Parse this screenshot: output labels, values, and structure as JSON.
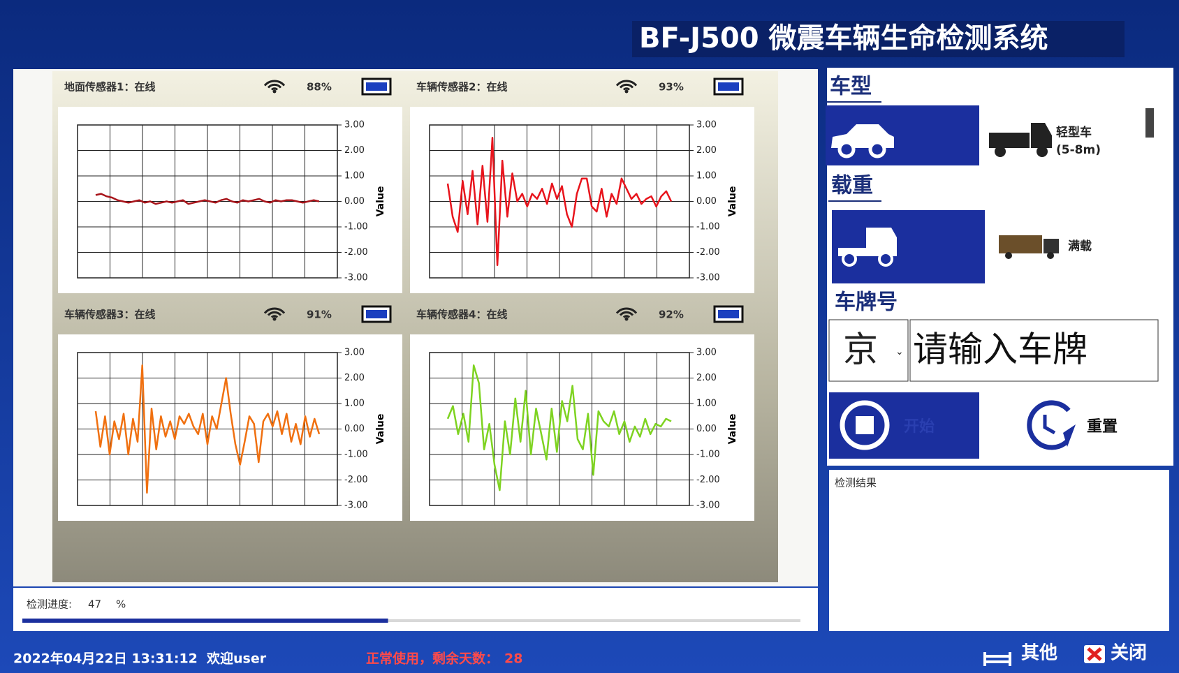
{
  "header": {
    "title": "BF-J500 微震车辆生命检测系统"
  },
  "sensors": [
    {
      "label": "地面传感器1：在线",
      "signal": "88%",
      "chart": {
        "type": "line",
        "ylabel": "Value",
        "ylim": [
          -3,
          3
        ],
        "yticks": [
          {
            "value": 3,
            "label": "3.00"
          },
          {
            "value": 2,
            "label": "2.00"
          },
          {
            "value": 1,
            "label": "1.00"
          },
          {
            "value": 0,
            "label": "0.00"
          },
          {
            "value": -1,
            "label": "-1.00"
          },
          {
            "value": -2,
            "label": "-2.00"
          },
          {
            "value": -3,
            "label": "-3.00"
          }
        ],
        "series": [
          {
            "color": "#a8141a",
            "values": [
              0.25,
              0.3,
              0.2,
              0.15,
              0.05,
              0,
              -0.05,
              0,
              0.05,
              -0.05,
              0,
              -0.1,
              -0.05,
              0,
              -0.05,
              0,
              0.05,
              -0.1,
              -0.05,
              0,
              0.05,
              0,
              -0.05,
              0.05,
              0.1,
              0,
              -0.05,
              0.05,
              0,
              0.05,
              0.1,
              0,
              -0.05,
              0.05,
              0,
              0.05,
              0.05,
              0,
              -0.05,
              0,
              0.05,
              0
            ]
          }
        ]
      }
    },
    {
      "label": "车辆传感器2：在线",
      "signal": "93%",
      "chart": {
        "type": "line",
        "ylabel": "Value",
        "ylim": [
          -3,
          3
        ],
        "yticks": [
          {
            "value": 3,
            "label": "3.00"
          },
          {
            "value": 2,
            "label": "2.00"
          },
          {
            "value": 1,
            "label": "1.00"
          },
          {
            "value": 0,
            "label": "0.00"
          },
          {
            "value": -1,
            "label": "-1.00"
          },
          {
            "value": -2,
            "label": "-2.00"
          },
          {
            "value": -3,
            "label": "-3.00"
          }
        ],
        "series": [
          {
            "color": "#e8141c",
            "values": [
              0.7,
              -0.6,
              -1.2,
              0.8,
              -0.5,
              1.2,
              -0.9,
              1.4,
              -0.8,
              2.5,
              -2.5,
              1.6,
              -0.6,
              1.1,
              0,
              0.3,
              -0.2,
              0.3,
              0.1,
              0.5,
              -0.1,
              0.7,
              0.1,
              0.6,
              -0.5,
              -1,
              0.3,
              0.9,
              0.9,
              -0.2,
              -0.4,
              0.5,
              -0.6,
              0.3,
              -0.1,
              0.9,
              0.5,
              0.1,
              0.3,
              -0.1,
              0.1,
              0.2,
              -0.2,
              0.2,
              0.4,
              0
            ]
          }
        ]
      }
    },
    {
      "label": "车辆传感器3：在线",
      "signal": "91%",
      "chart": {
        "type": "line",
        "ylabel": "Value",
        "ylim": [
          -3,
          3
        ],
        "yticks": [
          {
            "value": 3,
            "label": "3.00"
          },
          {
            "value": 2,
            "label": "2.00"
          },
          {
            "value": 1,
            "label": "1.00"
          },
          {
            "value": 0,
            "label": "0.00"
          },
          {
            "value": -1,
            "label": "-1.00"
          },
          {
            "value": -2,
            "label": "-2.00"
          },
          {
            "value": -3,
            "label": "-3.00"
          }
        ],
        "series": [
          {
            "color": "#f07010",
            "values": [
              0.7,
              -0.7,
              0.5,
              -1,
              0.3,
              -0.4,
              0.6,
              -1,
              0.4,
              -0.5,
              2.5,
              -2.5,
              0.8,
              -0.8,
              0.5,
              -0.3,
              0.3,
              -0.4,
              0.5,
              0.2,
              0.6,
              0.1,
              -0.2,
              0.6,
              -0.6,
              0.5,
              0,
              1,
              2,
              0.6,
              -0.6,
              -1.4,
              -0.5,
              0.5,
              0.2,
              -1.3,
              0.3,
              0.6,
              0.1,
              0.7,
              -0.2,
              0.6,
              -0.5,
              0.2,
              -0.6,
              0.5,
              -0.3,
              0.4,
              -0.2
            ]
          }
        ]
      }
    },
    {
      "label": "车辆传感器4：在线",
      "signal": "92%",
      "chart": {
        "type": "line",
        "ylabel": "Value",
        "ylim": [
          -3,
          3
        ],
        "yticks": [
          {
            "value": 3,
            "label": "3.00"
          },
          {
            "value": 2,
            "label": "2.00"
          },
          {
            "value": 1,
            "label": "1.00"
          },
          {
            "value": 0,
            "label": "0.00"
          },
          {
            "value": -1,
            "label": "-1.00"
          },
          {
            "value": -2,
            "label": "-2.00"
          },
          {
            "value": -3,
            "label": "-3.00"
          }
        ],
        "series": [
          {
            "color": "#7ed321",
            "values": [
              0.4,
              0.9,
              -0.2,
              0.6,
              -0.5,
              2.5,
              1.8,
              -0.8,
              0.2,
              -1.4,
              -2.4,
              0.3,
              -1,
              1.2,
              -0.5,
              1.5,
              -1,
              0.8,
              -0.2,
              -1.2,
              0.8,
              -0.9,
              1.1,
              0.3,
              1.7,
              -0.4,
              -0.8,
              0.6,
              -1.8,
              0.7,
              0.3,
              0.1,
              0.7,
              -0.2,
              0.3,
              -0.5,
              0.1,
              -0.3,
              0.4,
              -0.2,
              0.2,
              0.1,
              0.4,
              0.3
            ]
          }
        ]
      }
    }
  ],
  "form": {
    "vehicle_type_label": "车型",
    "vehicle_type": "轻型车",
    "vehicle_size": "(5-8m)",
    "load_label": "载重",
    "load": "满载",
    "plate_label": "车牌号",
    "province": "京",
    "plate_placeholder": "请输入车牌",
    "start_button": "开始",
    "reset_button": "重置",
    "result_label": "检测结果"
  },
  "progress": {
    "label": "检测进度:",
    "value": 47,
    "unit": "%",
    "range": [
      0,
      100
    ]
  },
  "footer": {
    "datetime": "2022年04月22日 13:31:12",
    "welcome": "欢迎user",
    "status": "正常使用，剩余天数：",
    "days_left": 28,
    "other_button": "其他",
    "close_button": "关闭"
  }
}
